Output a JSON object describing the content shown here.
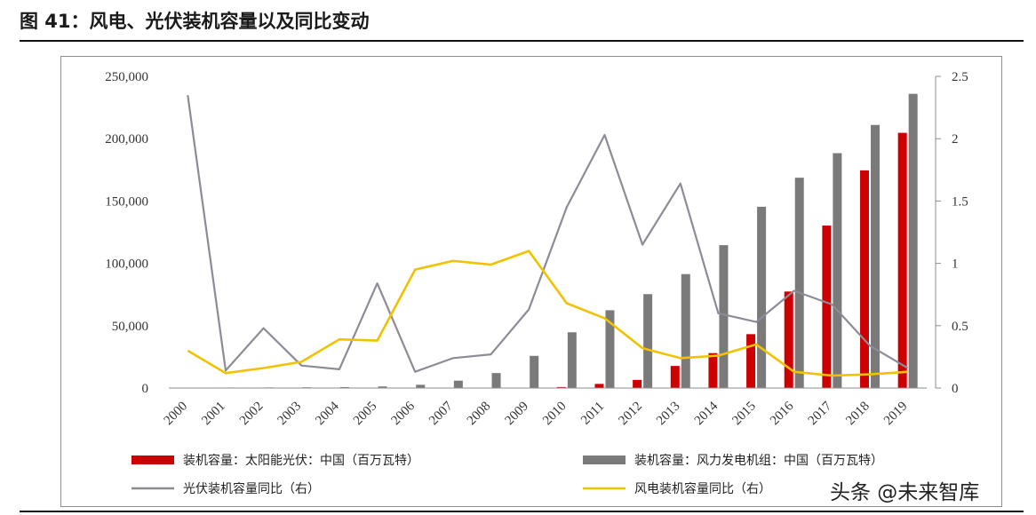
{
  "figure_title": "图 41：风电、光伏装机容量以及同比变动",
  "watermark": "头条 @未来智库",
  "colors": {
    "solar_bar": "#cc0000",
    "wind_bar": "#7a7a7a",
    "solar_yoy_line": "#8c8c97",
    "wind_yoy_line": "#f2c200"
  },
  "chart_data": {
    "type": "bar",
    "categories": [
      "2000",
      "2001",
      "2002",
      "2003",
      "2004",
      "2005",
      "2006",
      "2007",
      "2008",
      "2009",
      "2010",
      "2011",
      "2012",
      "2013",
      "2014",
      "2015",
      "2016",
      "2017",
      "2018",
      "2019"
    ],
    "left_axis": {
      "ylim": [
        0,
        250000
      ],
      "ticks": [
        "0",
        "50,000",
        "100,000",
        "150,000",
        "200,000",
        "250,000"
      ],
      "tick_values": [
        0,
        50000,
        100000,
        150000,
        200000,
        250000
      ]
    },
    "right_axis": {
      "ylim": [
        0,
        2.5
      ],
      "ticks": [
        "0",
        "0.5",
        "1",
        "1.5",
        "2",
        "2.5"
      ],
      "tick_values": [
        0,
        0.5,
        1,
        1.5,
        2,
        2.5
      ]
    },
    "series": [
      {
        "name": "装机容量：太阳能光伏：中国（百万瓦特）",
        "kind": "bar",
        "axis": "left",
        "color": "#cc0000",
        "values": [
          19,
          24,
          42,
          52,
          65,
          70,
          80,
          100,
          140,
          300,
          800,
          3300,
          6500,
          17700,
          28000,
          43200,
          77400,
          130300,
          174600,
          204700
        ]
      },
      {
        "name": "装机容量：风力发电机组：中国（百万瓦特）",
        "kind": "bar",
        "axis": "left",
        "color": "#7a7a7a",
        "values": [
          350,
          400,
          470,
          570,
          760,
          1270,
          2600,
          5900,
          12000,
          25800,
          44700,
          62400,
          75300,
          91400,
          114600,
          145400,
          168700,
          188400,
          211000,
          236000
        ]
      },
      {
        "name": "光伏装机容量同比（右）",
        "kind": "line",
        "axis": "right",
        "color": "#8c8c97",
        "values": [
          2.35,
          0.14,
          0.48,
          0.18,
          0.15,
          0.84,
          0.13,
          0.24,
          0.27,
          0.63,
          1.45,
          2.03,
          1.15,
          1.64,
          0.6,
          0.53,
          0.78,
          0.67,
          0.34,
          0.16
        ]
      },
      {
        "name": "风电装机容量同比（右）",
        "kind": "line",
        "axis": "right",
        "color": "#f2c200",
        "values": [
          0.3,
          0.12,
          0.16,
          0.21,
          0.39,
          0.38,
          0.95,
          1.02,
          0.99,
          1.1,
          0.68,
          0.56,
          0.32,
          0.24,
          0.26,
          0.35,
          0.13,
          0.1,
          0.11,
          0.13
        ]
      }
    ]
  }
}
